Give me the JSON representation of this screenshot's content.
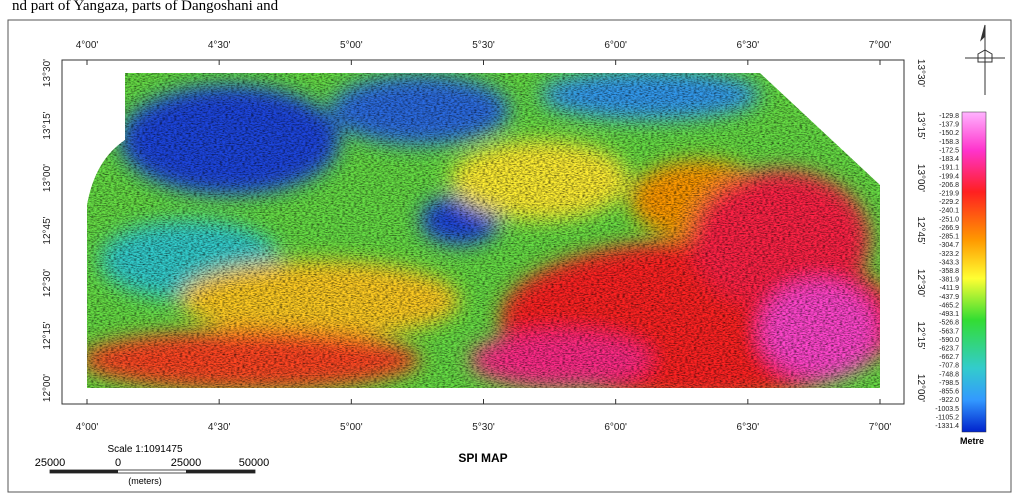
{
  "header": {
    "text": "nd part of Yangaza, parts of Dangoshani and"
  },
  "map": {
    "title": "SPI MAP",
    "lon_labels": [
      "4°00'",
      "4°30'",
      "5°00'",
      "5°30'",
      "6°00'",
      "6°30'",
      "7°00'"
    ],
    "lat_labels": [
      "13°30'",
      "13°15'",
      "13°00'",
      "12°45'",
      "12°30'",
      "12°15'",
      "12°00'"
    ],
    "scale": {
      "text": "Scale 1:1091475",
      "ticks": [
        "25000",
        "0",
        "25000",
        "50000"
      ],
      "unit": "(meters)"
    },
    "legend": {
      "unit": "Metre",
      "labels": [
        "-129.8",
        "-137.9",
        "-150.2",
        "-158.3",
        "-172.5",
        "-183.4",
        "-191.1",
        "-199.4",
        "-206.8",
        "-219.9",
        "-229.2",
        "-240.1",
        "-251.0",
        "-266.9",
        "-285.1",
        "-304.7",
        "-323.2",
        "-343.3",
        "-358.8",
        "-381.9",
        "-411.9",
        "-437.9",
        "-465.2",
        "-493.1",
        "-526.8",
        "-563.7",
        "-590.0",
        "-623.7",
        "-662.7",
        "-707.8",
        "-748.8",
        "-798.5",
        "-855.6",
        "-922.0",
        "-1003.5",
        "-1105.2",
        "-1331.4"
      ]
    }
  }
}
